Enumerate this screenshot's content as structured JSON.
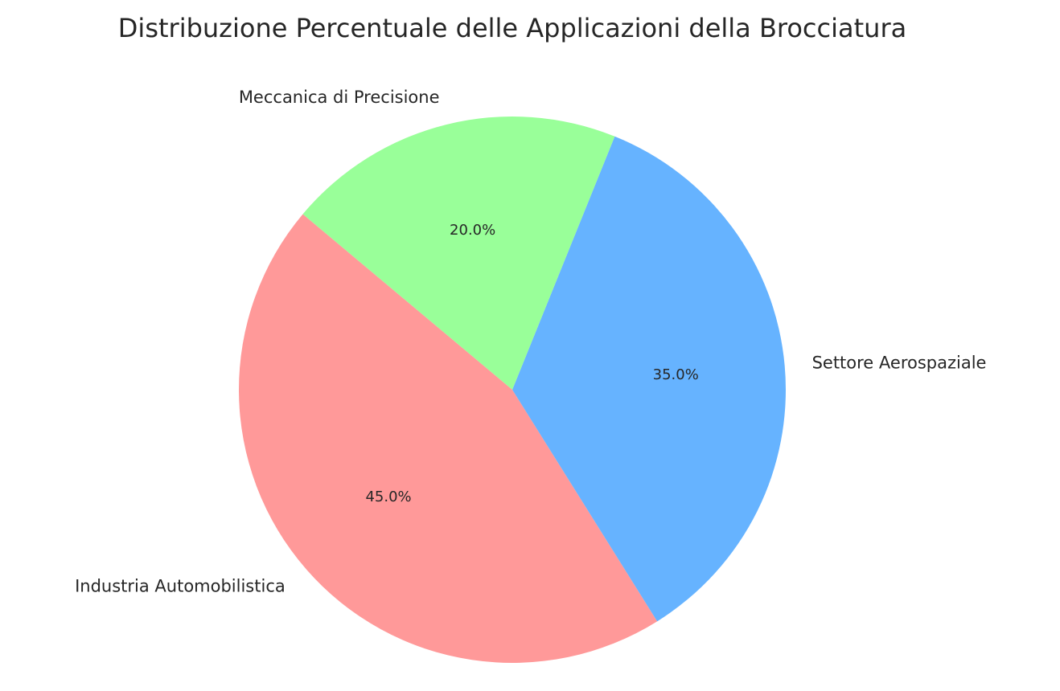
{
  "chart_data": {
    "type": "pie",
    "title": "Distribuzione Percentuale delle Applicazioni della Brocciatura",
    "categories": [
      "Industria Automobilistica",
      "Settore Aerospaziale",
      "Meccanica di Precisione"
    ],
    "values": [
      45,
      35,
      20
    ],
    "value_labels": [
      "45.0%",
      "35.0%",
      "20.0%"
    ],
    "colors": [
      "#ff9999",
      "#66b3ff",
      "#99ff99"
    ]
  }
}
